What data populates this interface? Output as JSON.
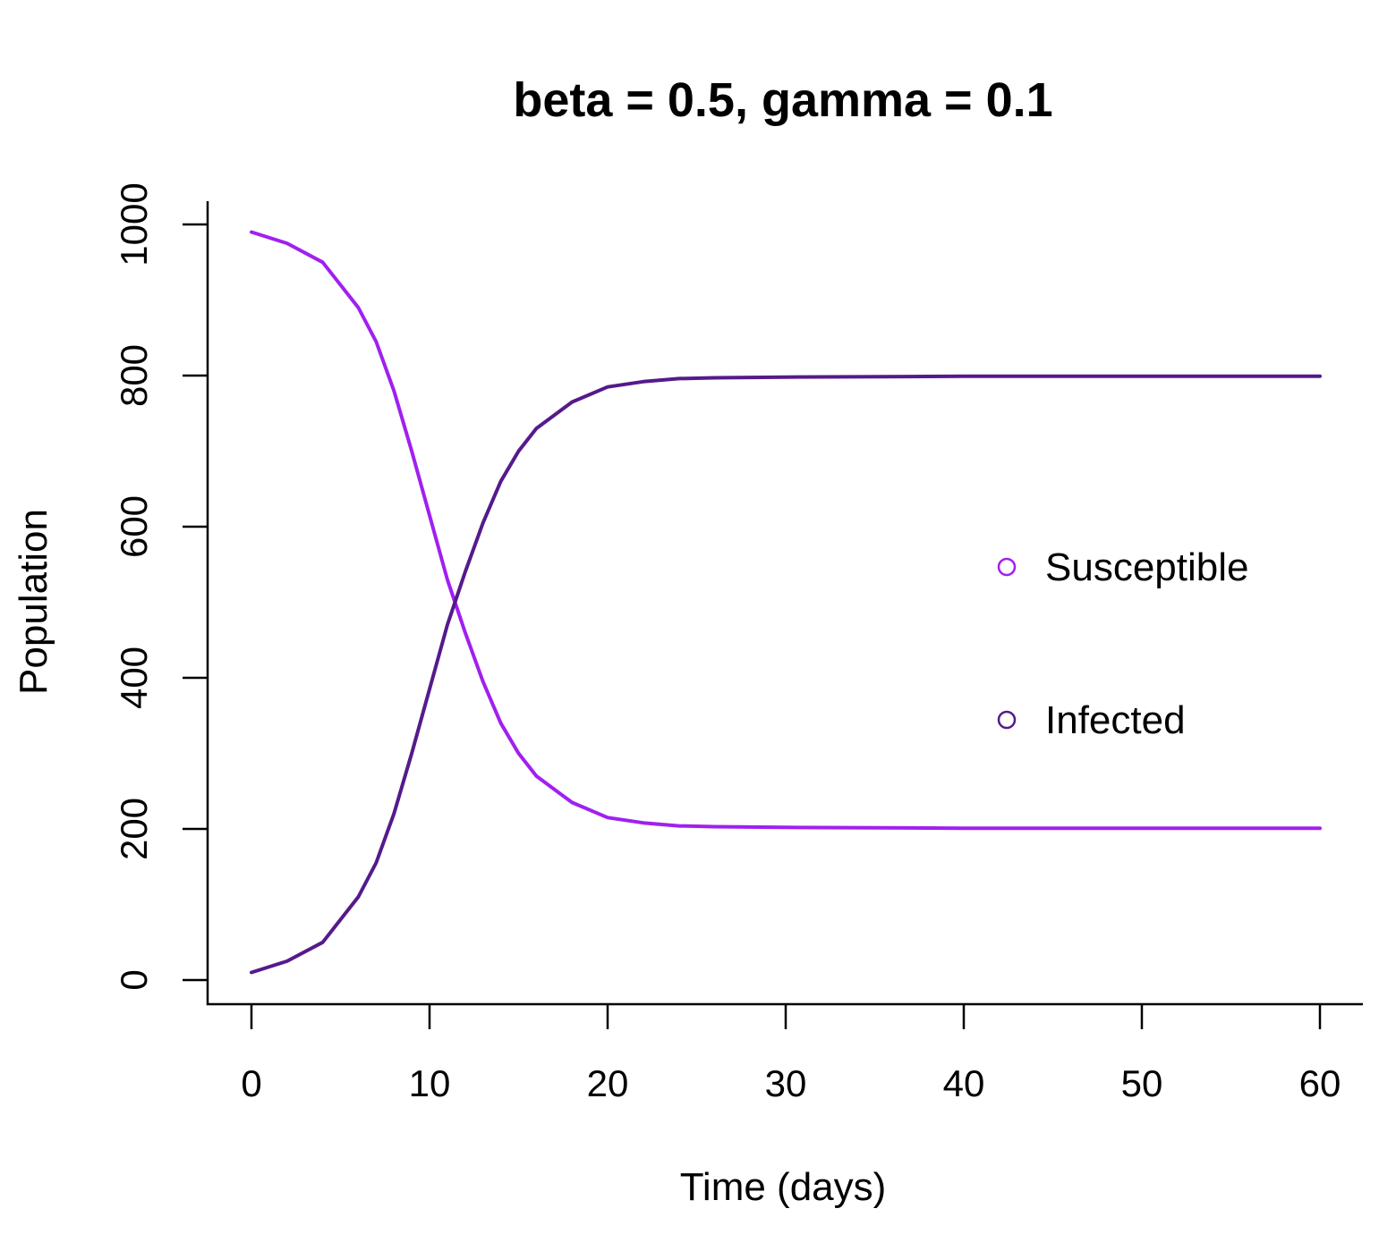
{
  "chart_data": {
    "type": "line",
    "title": "beta = 0.5, gamma = 0.1",
    "xlabel": "Time (days)",
    "ylabel": "Population",
    "xlim": [
      0,
      60
    ],
    "ylim": [
      0,
      1000
    ],
    "x_ticks": [
      0,
      10,
      20,
      30,
      40,
      50,
      60
    ],
    "y_ticks": [
      0,
      200,
      400,
      600,
      800,
      1000
    ],
    "grid": false,
    "legend_position": "right",
    "series": [
      {
        "name": "Susceptible",
        "color": "#a020f0",
        "x": [
          0,
          2,
          4,
          6,
          7,
          8,
          9,
          10,
          11,
          12,
          13,
          14,
          15,
          16,
          18,
          20,
          22,
          24,
          26,
          30,
          40,
          50,
          60
        ],
        "y": [
          990,
          975,
          950,
          890,
          845,
          780,
          700,
          615,
          530,
          460,
          395,
          340,
          300,
          270,
          235,
          215,
          208,
          204,
          203,
          202,
          201,
          201,
          201
        ]
      },
      {
        "name": "Infected",
        "color": "#551a8b",
        "x": [
          0,
          2,
          4,
          6,
          7,
          8,
          9,
          10,
          11,
          12,
          13,
          14,
          15,
          16,
          18,
          20,
          22,
          24,
          26,
          30,
          40,
          50,
          60
        ],
        "y": [
          10,
          25,
          50,
          110,
          155,
          220,
          300,
          385,
          470,
          540,
          605,
          660,
          700,
          730,
          765,
          785,
          792,
          796,
          797,
          798,
          799,
          799,
          799
        ]
      }
    ]
  }
}
